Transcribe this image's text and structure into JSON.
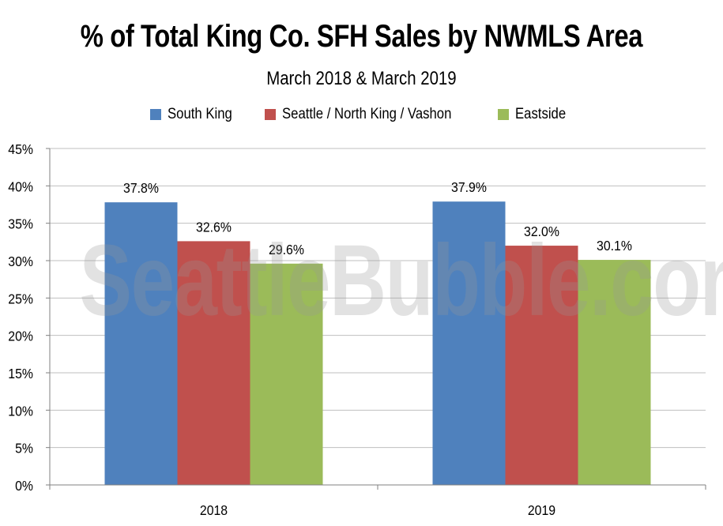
{
  "chart_data": {
    "type": "bar",
    "title": "% of Total King Co. SFH Sales by NWMLS Area",
    "subtitle": "March 2018 & March 2019",
    "categories": [
      "2018",
      "2019"
    ],
    "series": [
      {
        "name": "South King",
        "values": [
          37.8,
          37.9
        ],
        "labels": [
          "37.8%",
          "37.9%"
        ],
        "color": "#4f81bd"
      },
      {
        "name": "Seattle / North King / Vashon",
        "values": [
          32.6,
          32.0
        ],
        "labels": [
          "32.6%",
          "32.0%"
        ],
        "color": "#c0504d"
      },
      {
        "name": "Eastside",
        "values": [
          29.6,
          30.1
        ],
        "labels": [
          "29.6%",
          "30.1%"
        ],
        "color": "#9bbb59"
      }
    ],
    "xlabel": "",
    "ylabel": "",
    "ylim": [
      0,
      45
    ],
    "yticks": [
      0,
      5,
      10,
      15,
      20,
      25,
      30,
      35,
      40,
      45
    ],
    "ytick_labels": [
      "0%",
      "5%",
      "10%",
      "15%",
      "20%",
      "25%",
      "30%",
      "35%",
      "40%",
      "45%"
    ],
    "grid": true,
    "legend_position": "top"
  },
  "watermark": "SeattleBubble.com",
  "colors": {
    "grid": "#bfbfbf",
    "axis": "#808080"
  }
}
